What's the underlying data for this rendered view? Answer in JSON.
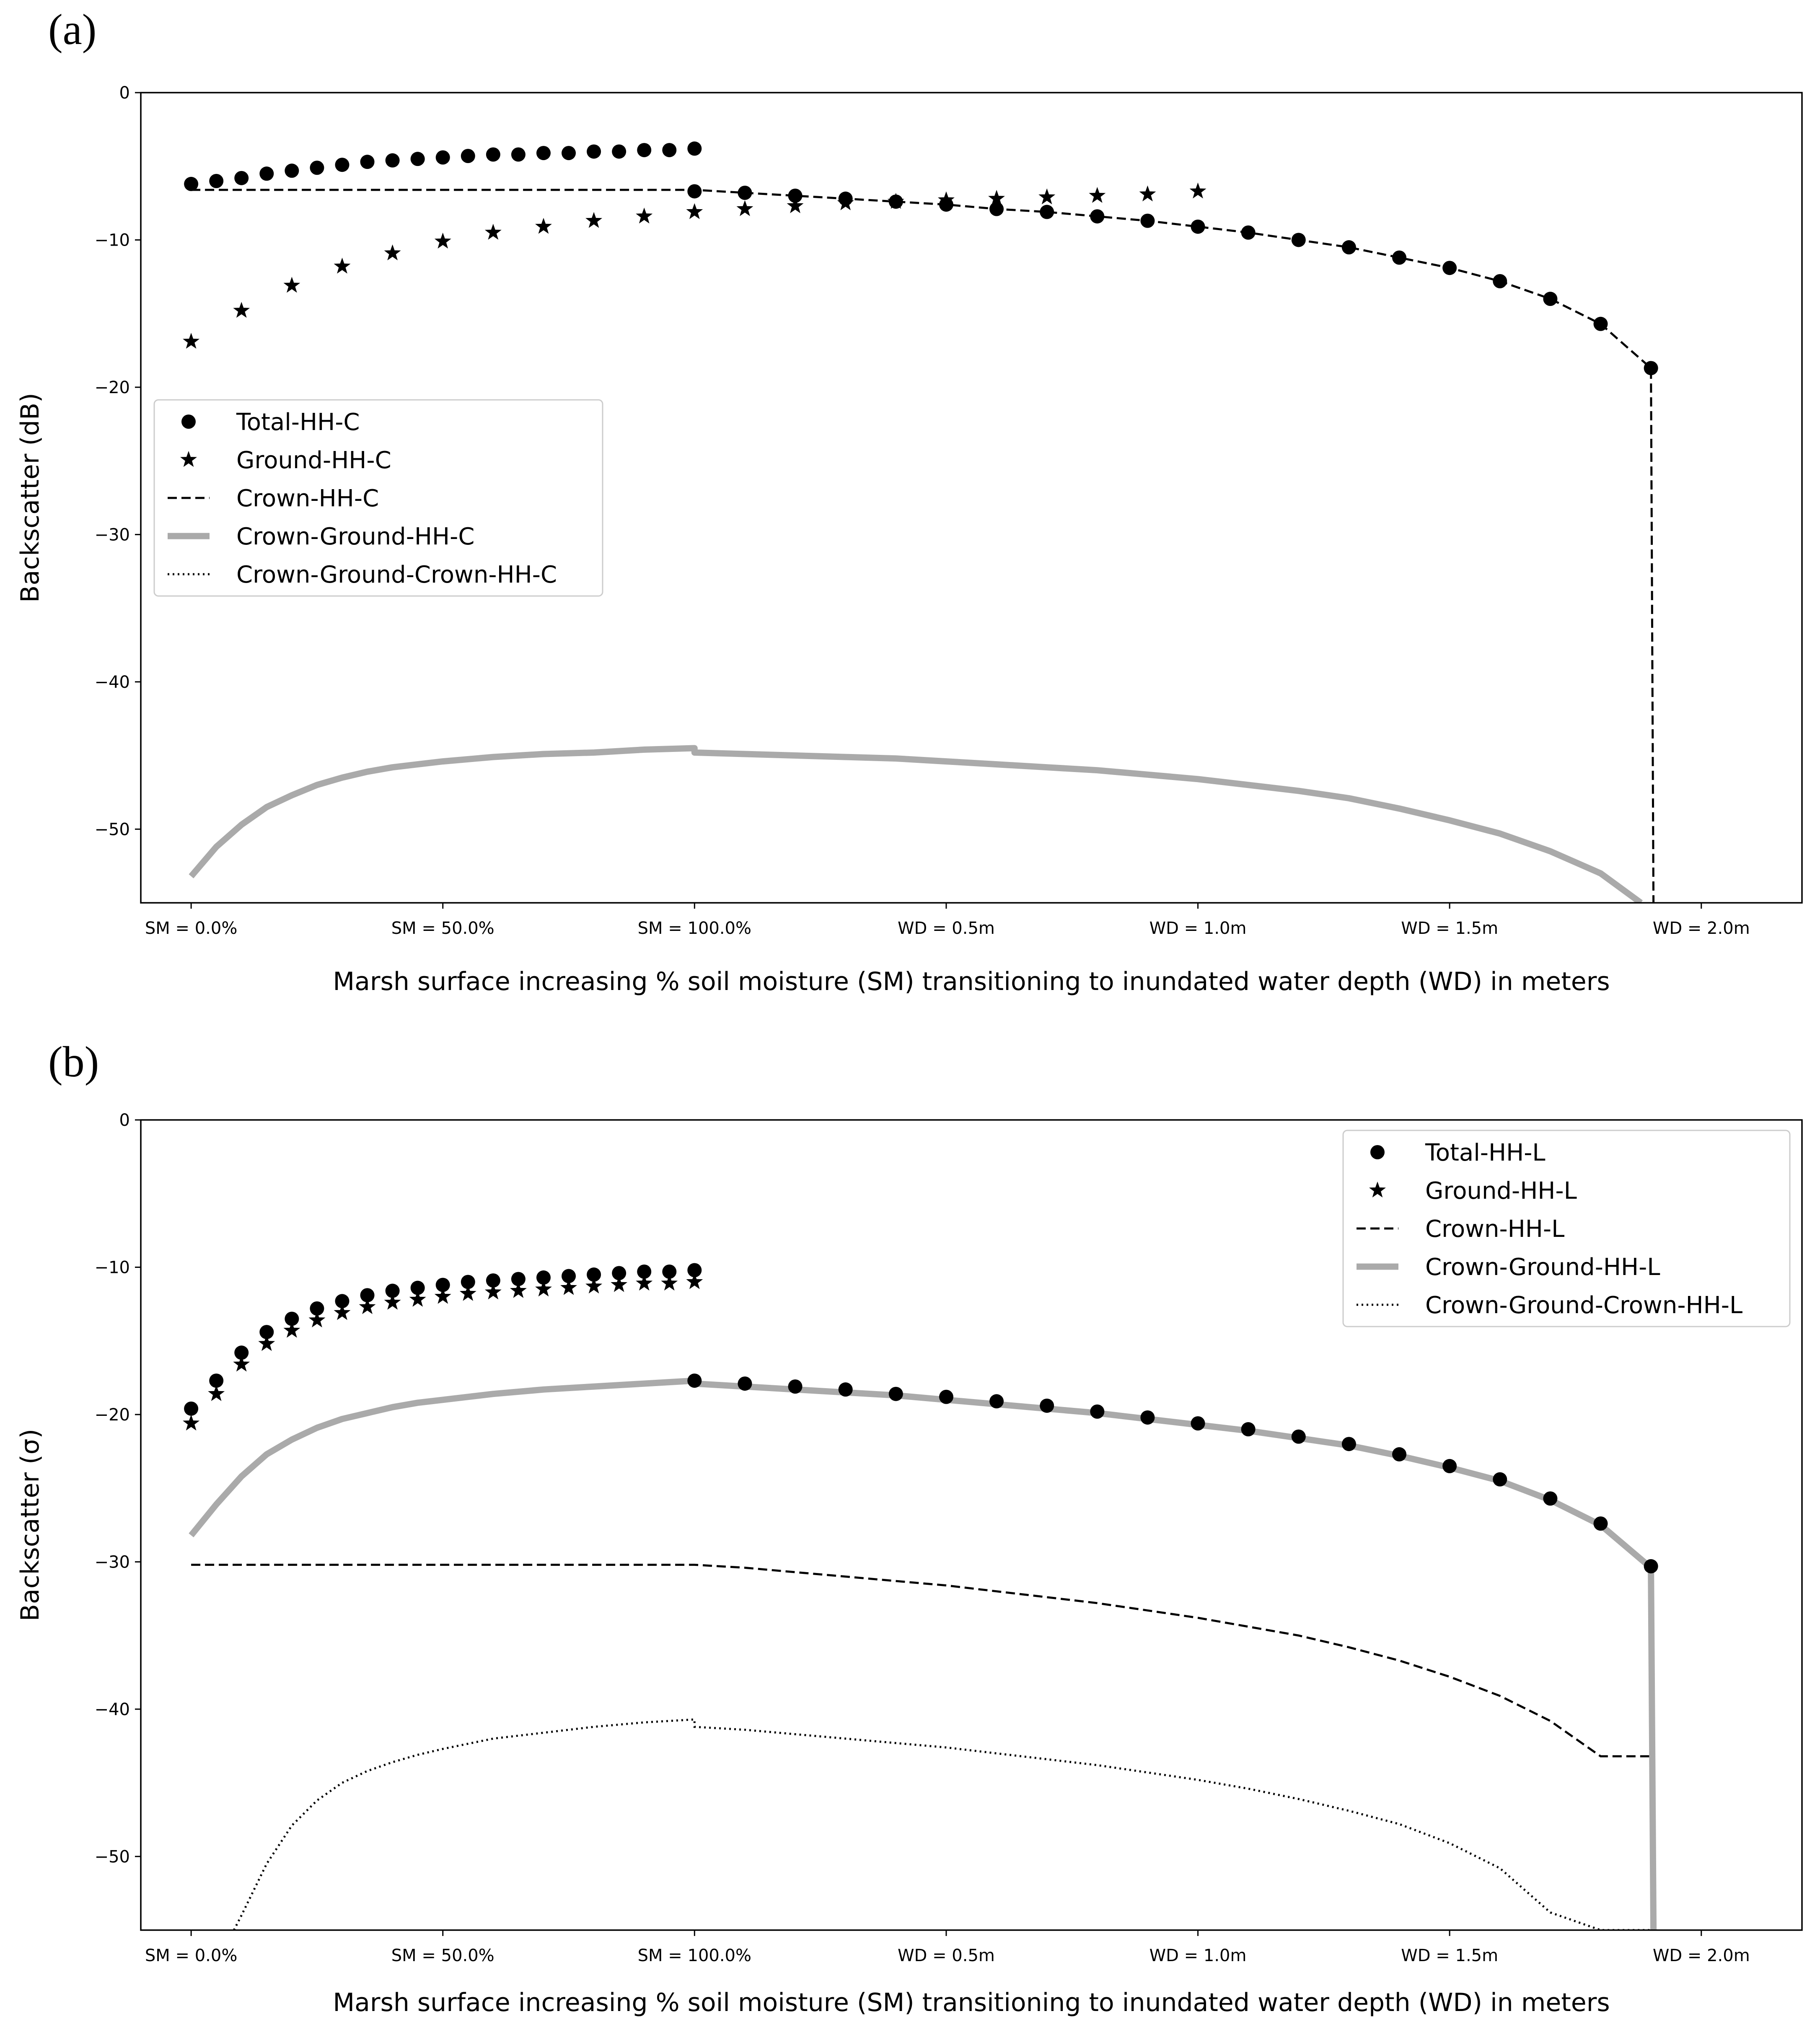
{
  "chart_data": [
    {
      "type": "scatter",
      "panel_label": "(a)",
      "ylabel": "Backscatter (dB)",
      "xlabel": "Marsh surface increasing % soil moisture (SM) transitioning to inundated water depth (WD) in meters",
      "ylim": [
        -55,
        0
      ],
      "xlim": [
        -1,
        32
      ],
      "yticks": [
        0,
        -10,
        -20,
        -30,
        -40,
        -50
      ],
      "ytick_labels": [
        "0",
        "−10",
        "−20",
        "−30",
        "−40",
        "−50"
      ],
      "xticks": [
        0,
        5,
        10,
        15,
        20,
        25,
        30
      ],
      "xtick_labels": [
        "SM = 0.0%",
        "SM = 50.0%",
        "SM = 100.0%",
        "WD = 0.5m",
        "WD = 1.0m",
        "WD = 1.5m",
        "WD = 2.0m"
      ],
      "legend_position": "center-left",
      "series": [
        {
          "name": "Total-HH-C",
          "style": "dot",
          "color": "#000000",
          "x": [
            0,
            0.5,
            1,
            1.5,
            2,
            2.5,
            3,
            3.5,
            4,
            4.5,
            5,
            5.5,
            6,
            6.5,
            7,
            7.5,
            8,
            8.5,
            9,
            9.5,
            10,
            10,
            11,
            12,
            13,
            14,
            15,
            16,
            17,
            18,
            19,
            20,
            21,
            22,
            23,
            24,
            25,
            26,
            27,
            28,
            29
          ],
          "y": [
            -6.2,
            -6.0,
            -5.8,
            -5.5,
            -5.3,
            -5.1,
            -4.9,
            -4.7,
            -4.6,
            -4.5,
            -4.4,
            -4.3,
            -4.2,
            -4.2,
            -4.1,
            -4.1,
            -4.0,
            -4.0,
            -3.9,
            -3.9,
            -3.8,
            -6.7,
            -6.8,
            -7.0,
            -7.2,
            -7.4,
            -7.6,
            -7.9,
            -8.1,
            -8.4,
            -8.7,
            -9.1,
            -9.5,
            -10.0,
            -10.5,
            -11.2,
            -11.9,
            -12.8,
            -14.0,
            -15.7,
            -18.7
          ]
        },
        {
          "name": "Ground-HH-C",
          "style": "star",
          "color": "#000000",
          "x": [
            0,
            1,
            2,
            3,
            4,
            5,
            6,
            7,
            8,
            9,
            10,
            11,
            12,
            13,
            14,
            15,
            16,
            17,
            18,
            19,
            20
          ],
          "y": [
            -16.9,
            -14.8,
            -13.1,
            -11.8,
            -10.9,
            -10.1,
            -9.5,
            -9.1,
            -8.7,
            -8.4,
            -8.1,
            -7.9,
            -7.7,
            -7.5,
            -7.4,
            -7.3,
            -7.2,
            -7.1,
            -7.0,
            -6.9,
            -6.7
          ]
        },
        {
          "name": "Crown-HH-C",
          "style": "dashed",
          "color": "#000000",
          "x": [
            0,
            10,
            11,
            12,
            13,
            14,
            15,
            16,
            17,
            18,
            19,
            20,
            21,
            22,
            23,
            24,
            25,
            26,
            27,
            28,
            29,
            29.05
          ],
          "y": [
            -6.6,
            -6.6,
            -6.8,
            -7.0,
            -7.2,
            -7.4,
            -7.6,
            -7.9,
            -8.1,
            -8.4,
            -8.7,
            -9.1,
            -9.5,
            -10.0,
            -10.5,
            -11.2,
            -11.9,
            -12.8,
            -14.0,
            -15.7,
            -18.7,
            -55
          ]
        },
        {
          "name": "Crown-Ground-HH-C",
          "style": "thick",
          "color": "#aaaaaa",
          "x": [
            0,
            0.5,
            1,
            1.5,
            2,
            2.5,
            3,
            3.5,
            4,
            4.5,
            5,
            6,
            7,
            8,
            9,
            10,
            10,
            11,
            12,
            13,
            14,
            15,
            16,
            17,
            18,
            19,
            20,
            21,
            22,
            23,
            24,
            25,
            26,
            27,
            28,
            28.8
          ],
          "y": [
            -53.2,
            -51.2,
            -49.7,
            -48.5,
            -47.7,
            -47.0,
            -46.5,
            -46.1,
            -45.8,
            -45.6,
            -45.4,
            -45.1,
            -44.9,
            -44.8,
            -44.6,
            -44.5,
            -44.8,
            -44.9,
            -45.0,
            -45.1,
            -45.2,
            -45.4,
            -45.6,
            -45.8,
            -46.0,
            -46.3,
            -46.6,
            -47.0,
            -47.4,
            -47.9,
            -48.6,
            -49.4,
            -50.3,
            -51.5,
            -53.0,
            -55.0
          ]
        },
        {
          "name": "Crown-Ground-Crown-HH-C",
          "style": "dotted",
          "color": "#000000",
          "x": [],
          "y": []
        }
      ]
    },
    {
      "type": "scatter",
      "panel_label": "(b)",
      "ylabel": "Backscatter (σ)",
      "xlabel": "Marsh surface increasing % soil moisture (SM) transitioning to inundated water depth (WD) in meters",
      "ylim": [
        -55,
        0
      ],
      "xlim": [
        -1,
        32
      ],
      "yticks": [
        0,
        -10,
        -20,
        -30,
        -40,
        -50
      ],
      "ytick_labels": [
        "0",
        "−10",
        "−20",
        "−30",
        "−40",
        "−50"
      ],
      "xticks": [
        0,
        5,
        10,
        15,
        20,
        25,
        30
      ],
      "xtick_labels": [
        "SM = 0.0%",
        "SM = 50.0%",
        "SM = 100.0%",
        "WD = 0.5m",
        "WD = 1.0m",
        "WD = 1.5m",
        "WD = 2.0m"
      ],
      "legend_position": "top-right",
      "series": [
        {
          "name": "Total-HH-L",
          "style": "dot",
          "color": "#000000",
          "x": [
            0,
            0.5,
            1,
            1.5,
            2,
            2.5,
            3,
            3.5,
            4,
            4.5,
            5,
            5.5,
            6,
            6.5,
            7,
            7.5,
            8,
            8.5,
            9,
            9.5,
            10,
            10,
            11,
            12,
            13,
            14,
            15,
            16,
            17,
            18,
            19,
            20,
            21,
            22,
            23,
            24,
            25,
            26,
            27,
            28,
            29
          ],
          "y": [
            -19.6,
            -17.7,
            -15.8,
            -14.4,
            -13.5,
            -12.8,
            -12.3,
            -11.9,
            -11.6,
            -11.4,
            -11.2,
            -11.0,
            -10.9,
            -10.8,
            -10.7,
            -10.6,
            -10.5,
            -10.4,
            -10.3,
            -10.3,
            -10.2,
            -17.7,
            -17.9,
            -18.1,
            -18.3,
            -18.6,
            -18.8,
            -19.1,
            -19.4,
            -19.8,
            -20.2,
            -20.6,
            -21.0,
            -21.5,
            -22.0,
            -22.7,
            -23.5,
            -24.4,
            -25.7,
            -27.4,
            -30.3
          ]
        },
        {
          "name": "Ground-HH-L",
          "style": "star",
          "color": "#000000",
          "x": [
            0,
            0.5,
            1,
            1.5,
            2,
            2.5,
            3,
            3.5,
            4,
            4.5,
            5,
            5.5,
            6,
            6.5,
            7,
            7.5,
            8,
            8.5,
            9,
            9.5,
            10
          ],
          "y": [
            -20.6,
            -18.6,
            -16.6,
            -15.2,
            -14.3,
            -13.6,
            -13.1,
            -12.7,
            -12.4,
            -12.2,
            -12.0,
            -11.8,
            -11.7,
            -11.6,
            -11.5,
            -11.4,
            -11.3,
            -11.2,
            -11.1,
            -11.1,
            -11.0
          ]
        },
        {
          "name": "Crown-HH-L",
          "style": "dashed",
          "color": "#000000",
          "x": [
            0,
            10,
            11,
            12,
            13,
            14,
            15,
            16,
            17,
            18,
            19,
            20,
            21,
            22,
            23,
            24,
            25,
            26,
            27,
            28,
            29
          ],
          "y": [
            -30.2,
            -30.2,
            -30.4,
            -30.7,
            -31.0,
            -31.3,
            -31.6,
            -32.0,
            -32.4,
            -32.8,
            -33.3,
            -33.8,
            -34.4,
            -35.0,
            -35.8,
            -36.7,
            -37.8,
            -39.1,
            -40.8,
            -43.2,
            -43.2
          ]
        },
        {
          "name": "Crown-Ground-HH-L",
          "style": "thick",
          "color": "#aaaaaa",
          "x": [
            0,
            0.5,
            1,
            1.5,
            2,
            2.5,
            3,
            3.5,
            4,
            4.5,
            5,
            6,
            7,
            8,
            9,
            10,
            10,
            11,
            12,
            13,
            14,
            15,
            16,
            17,
            18,
            19,
            20,
            21,
            22,
            23,
            24,
            25,
            26,
            27,
            28,
            29,
            29.05
          ],
          "y": [
            -28.2,
            -26.1,
            -24.2,
            -22.7,
            -21.7,
            -20.9,
            -20.3,
            -19.9,
            -19.5,
            -19.2,
            -19.0,
            -18.6,
            -18.3,
            -18.1,
            -17.9,
            -17.7,
            -17.9,
            -18.1,
            -18.3,
            -18.5,
            -18.7,
            -19.0,
            -19.3,
            -19.6,
            -19.9,
            -20.3,
            -20.7,
            -21.1,
            -21.6,
            -22.1,
            -22.8,
            -23.6,
            -24.5,
            -25.8,
            -27.5,
            -30.4,
            -55
          ]
        },
        {
          "name": "Crown-Ground-Crown-HH-L",
          "style": "dotted",
          "color": "#000000",
          "x": [
            0.85,
            1,
            1.5,
            2,
            2.5,
            3,
            3.5,
            4,
            4.5,
            5,
            6,
            7,
            8,
            9,
            10,
            10,
            11,
            12,
            13,
            14,
            15,
            16,
            17,
            18,
            19,
            20,
            21,
            22,
            23,
            24,
            25,
            26,
            27,
            28,
            29
          ],
          "y": [
            -55,
            -54.0,
            -50.5,
            -47.9,
            -46.2,
            -45.0,
            -44.2,
            -43.6,
            -43.1,
            -42.7,
            -42.0,
            -41.6,
            -41.2,
            -40.9,
            -40.7,
            -41.2,
            -41.4,
            -41.7,
            -42.0,
            -42.3,
            -42.6,
            -43.0,
            -43.4,
            -43.8,
            -44.3,
            -44.8,
            -45.4,
            -46.1,
            -46.9,
            -47.8,
            -49.1,
            -50.8,
            -53.8,
            -55.0,
            -55.0
          ]
        }
      ]
    }
  ]
}
